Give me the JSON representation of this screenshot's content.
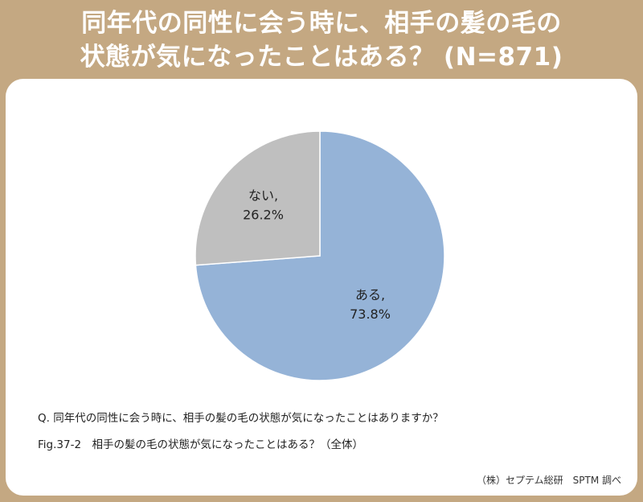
{
  "header": {
    "title_line1": "同年代の同性に会う時に、相手の髪の毛の",
    "title_line2": "状態が気になったことはある？ (N=871)"
  },
  "chart_data": {
    "type": "pie",
    "categories": [
      "ある",
      "ない"
    ],
    "values": [
      73.8,
      26.2
    ],
    "labels": [
      {
        "line1": "ある,",
        "line2": "73.8%"
      },
      {
        "line1": "ない,",
        "line2": "26.2%"
      }
    ],
    "colors": [
      "#95b3d7",
      "#bfbfbf"
    ],
    "start_angle": "12 o'clock, clockwise"
  },
  "footer": {
    "question": "Q. 同年代の同性に会う時に、相手の髪の毛の状態が気になったことはありますか？",
    "figure": "Fig.37-2　相手の髪の毛の状態が気になったことはある？（全体）",
    "credit": "（株）セプテム総研　SPTM 調べ"
  }
}
